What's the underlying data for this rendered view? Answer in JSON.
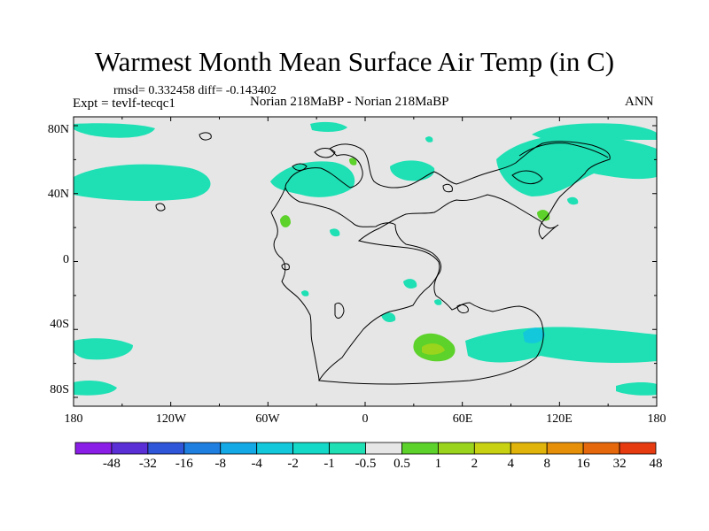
{
  "title": "Warmest Month Mean Surface Air Temp (in C)",
  "stats_text": "rmsd= 0.332458 diff= -0.143402",
  "experiment_text": "Expt = tevlf-tecqc1",
  "comparison_text": "Norian 218MaBP - Norian 218MaBP",
  "season_text": "ANN",
  "lat_labels": [
    "80N",
    "40N",
    "0",
    "40S",
    "80S"
  ],
  "lon_labels": [
    "180",
    "120W",
    "60W",
    "0",
    "60E",
    "120E",
    "180"
  ],
  "colorbar": {
    "labels": [
      "-48",
      "-32",
      "-16",
      "-8",
      "-4",
      "-2",
      "-1",
      "-0.5",
      "0.5",
      "1",
      "2",
      "4",
      "8",
      "16",
      "32",
      "48"
    ],
    "colors": [
      "#8a1ee6",
      "#5a2fd6",
      "#2f55d8",
      "#1f7fe0",
      "#13a8e6",
      "#12c8da",
      "#14d8c8",
      "#1ee0b4",
      "#e6e6e6",
      "#5cd22a",
      "#9ad41c",
      "#c8d212",
      "#e0b40a",
      "#e6900a",
      "#e6680c",
      "#e63a10"
    ]
  },
  "colors": {
    "background_field": "#e6e6e6",
    "neg_small": "#1ee0b4",
    "neg_medium": "#14d8c8",
    "neg_large": "#12c8da",
    "pos_small": "#5cd22a",
    "pos_medium": "#9ad41c"
  }
}
